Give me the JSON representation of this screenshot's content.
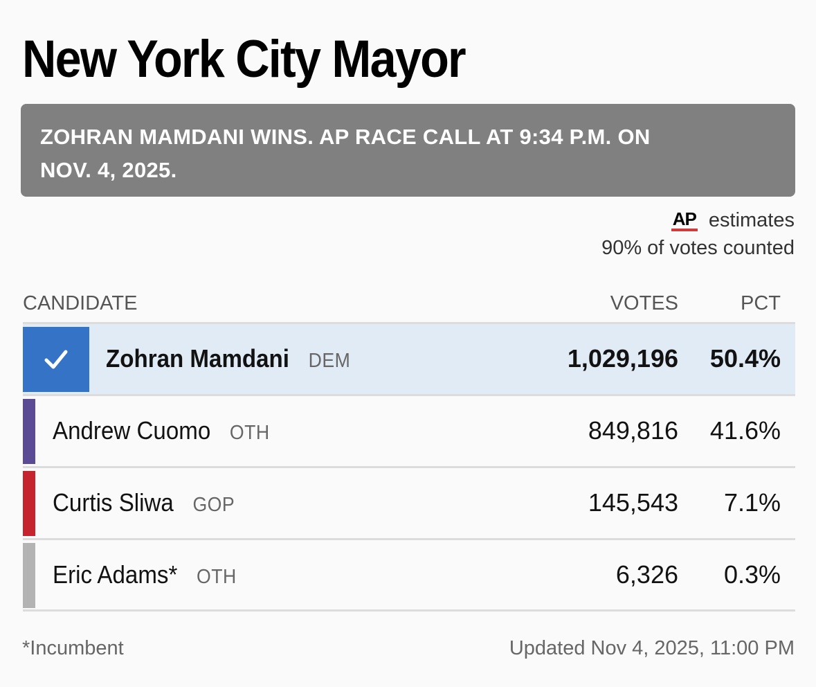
{
  "race": {
    "title": "New York City Mayor",
    "call_banner": "ZOHRAN MAMDANI WINS. AP RACE CALL AT 9:34 P.M. ON NOV. 4, 2025.",
    "ap_logo": "AP",
    "ap_estimates": "estimates",
    "votes_counted": "90% of votes counted"
  },
  "table": {
    "headers": {
      "candidate": "CANDIDATE",
      "votes": "VOTES",
      "pct": "PCT"
    },
    "rows": [
      {
        "name": "Zohran Mamdani",
        "party": "DEM",
        "votes": "1,029,196",
        "pct": "50.4%",
        "winner": true,
        "party_color": "#3473c5"
      },
      {
        "name": "Andrew Cuomo",
        "party": "OTH",
        "votes": "849,816",
        "pct": "41.6%",
        "winner": false,
        "party_color": "#5a4b94"
      },
      {
        "name": "Curtis Sliwa",
        "party": "GOP",
        "votes": "145,543",
        "pct": "7.1%",
        "winner": false,
        "party_color": "#c5242f"
      },
      {
        "name": "Eric Adams*",
        "party": "OTH",
        "votes": "6,326",
        "pct": "0.3%",
        "winner": false,
        "party_color": "#b3b3b3"
      }
    ]
  },
  "footer": {
    "footnote": "*Incumbent",
    "updated": "Updated Nov 4, 2025, 11:00 PM"
  },
  "colors": {
    "banner_bg": "#808080",
    "winner_row_bg": "#e1ebf5",
    "winner_check_bg": "#3473c5",
    "ap_underline": "#d03a3a"
  },
  "icons": {
    "winner_check": "checkmark-icon",
    "ap_logo": "ap-logo"
  }
}
